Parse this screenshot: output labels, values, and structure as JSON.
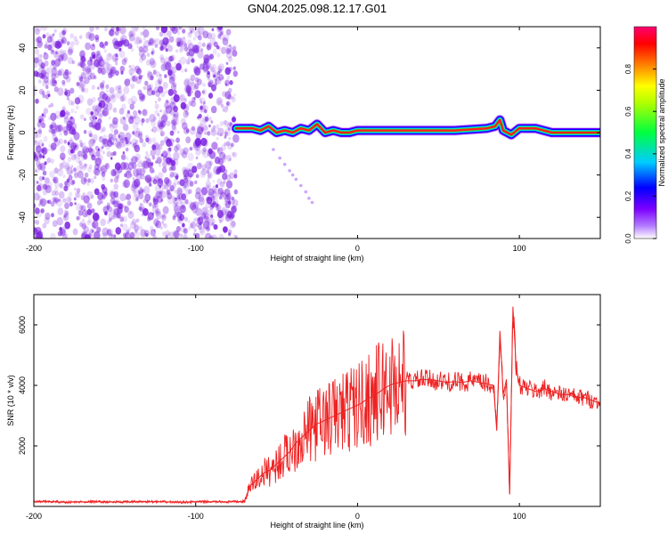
{
  "figure": {
    "title": "GN04.2025.098.12.17.G01"
  },
  "chart_data": [
    {
      "type": "heatmap",
      "xlabel": "Height of straight line (km)",
      "ylabel": "Frequency (Hz)",
      "xlim": [
        -200,
        150
      ],
      "ylim": [
        -50,
        50
      ],
      "xticks": [
        -200,
        -100,
        0,
        100
      ],
      "yticks": [
        -40,
        -20,
        0,
        20,
        40
      ],
      "colorbar": {
        "label": "Normalized spectral amplitude",
        "range": [
          0,
          1
        ],
        "ticks": [
          "0.0",
          "0.2",
          "0.4",
          "0.6",
          "0.8"
        ],
        "colors": [
          "#ffffff",
          "#7b00ff",
          "#0000ff",
          "#00ffff",
          "#00ff00",
          "#ffff00",
          "#ff8000",
          "#ff0000",
          "#ff00a0"
        ]
      },
      "noise_region": {
        "x_from": -200,
        "x_to": -75,
        "color": "#7a1fe0"
      },
      "ridge": {
        "x": [
          -75,
          -70,
          -65,
          -60,
          -55,
          -50,
          -45,
          -40,
          -35,
          -30,
          -25,
          -20,
          -15,
          -10,
          -5,
          0,
          20,
          40,
          60,
          80,
          85,
          88,
          90,
          95,
          100,
          110,
          120,
          130,
          140,
          150
        ],
        "frequency": [
          2,
          2,
          2,
          1,
          3,
          0,
          1,
          0,
          2,
          1,
          4,
          0,
          1,
          0,
          0,
          1,
          1,
          1,
          1,
          2,
          3,
          6,
          1,
          -1,
          2,
          2,
          0,
          0,
          0,
          0
        ]
      },
      "scatter_trail": {
        "x": [
          -52,
          -48,
          -45,
          -42,
          -40,
          -38,
          -35,
          -32,
          -30,
          -28
        ],
        "frequency": [
          -8,
          -12,
          -15,
          -18,
          -20,
          -22,
          -25,
          -28,
          -31,
          -33
        ]
      }
    },
    {
      "type": "line",
      "xlabel": "Height of straight line (km)",
      "ylabel": "SNR (10 * v/v)",
      "xlim": [
        -200,
        150
      ],
      "ylim": [
        0,
        7000
      ],
      "xticks": [
        -200,
        -100,
        0,
        100
      ],
      "yticks": [
        2000,
        4000,
        6000
      ],
      "series": [
        {
          "color": "#ee2222",
          "x": [
            -200,
            -190,
            -180,
            -170,
            -160,
            -150,
            -140,
            -130,
            -120,
            -110,
            -100,
            -90,
            -80,
            -70,
            -66,
            -62,
            -58,
            -54,
            -50,
            -46,
            -42,
            -38,
            -34,
            -30,
            -26,
            -22,
            -18,
            -14,
            -10,
            -6,
            -2,
            2,
            6,
            10,
            14,
            18,
            22,
            26,
            30,
            35,
            40,
            45,
            50,
            55,
            60,
            65,
            70,
            75,
            80,
            84,
            86,
            88,
            90,
            92,
            94,
            96,
            98,
            100,
            105,
            110,
            115,
            120,
            125,
            130,
            135,
            140,
            145,
            150
          ],
          "values": [
            150,
            160,
            140,
            150,
            155,
            145,
            150,
            160,
            150,
            140,
            150,
            155,
            150,
            160,
            700,
            900,
            1100,
            1200,
            1400,
            1600,
            1800,
            2100,
            2300,
            2500,
            2700,
            2800,
            2900,
            3000,
            3100,
            3200,
            3300,
            3400,
            3550,
            3650,
            3800,
            3950,
            4050,
            4100,
            4150,
            4150,
            4200,
            4180,
            4150,
            4100,
            4120,
            4100,
            4150,
            4100,
            4050,
            4000,
            2500,
            5800,
            3700,
            4200,
            400,
            6600,
            4600,
            4000,
            3900,
            3800,
            3900,
            3800,
            3700,
            3700,
            3600,
            3600,
            3500,
            3400
          ]
        }
      ]
    }
  ]
}
